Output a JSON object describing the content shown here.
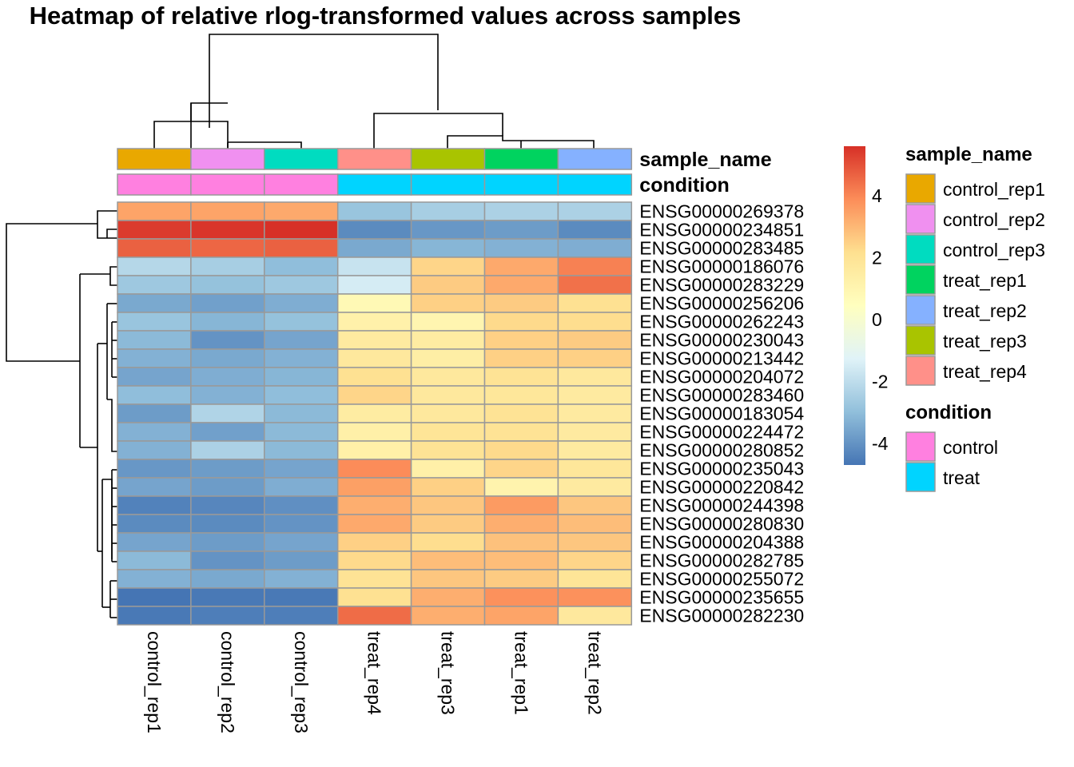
{
  "chart_data": {
    "type": "heatmap",
    "title": "Heatmap of relative rlog-transformed values across samples",
    "columns": [
      "control_rep1",
      "control_rep2",
      "control_rep3",
      "treat_rep4",
      "treat_rep3",
      "treat_rep1",
      "treat_rep2"
    ],
    "rows": [
      "ENSG00000269378",
      "ENSG00000234851",
      "ENSG00000283485",
      "ENSG00000186076",
      "ENSG00000283229",
      "ENSG00000256206",
      "ENSG00000262243",
      "ENSG00000230043",
      "ENSG00000213442",
      "ENSG00000204072",
      "ENSG00000283460",
      "ENSG00000183054",
      "ENSG00000224472",
      "ENSG00000280852",
      "ENSG00000235043",
      "ENSG00000220842",
      "ENSG00000244398",
      "ENSG00000280830",
      "ENSG00000204388",
      "ENSG00000282785",
      "ENSG00000255072",
      "ENSG00000235655",
      "ENSG00000282230"
    ],
    "values": [
      [
        3.4,
        3.4,
        3.3,
        -2.8,
        -2.5,
        -2.4,
        -2.4
      ],
      [
        5.4,
        5.5,
        5.6,
        -4.2,
        -3.9,
        -3.8,
        -4.2
      ],
      [
        4.7,
        4.6,
        4.7,
        -3.5,
        -3.2,
        -3.3,
        -3.4
      ],
      [
        -2.2,
        -2.5,
        -3.0,
        -1.8,
        2.4,
        3.3,
        4.1
      ],
      [
        -2.7,
        -2.9,
        -2.7,
        -1.5,
        2.6,
        3.3,
        4.4
      ],
      [
        -3.5,
        -3.7,
        -3.4,
        0.8,
        2.5,
        2.6,
        2.1
      ],
      [
        -2.8,
        -3.2,
        -2.9,
        1.2,
        1.0,
        2.3,
        2.2
      ],
      [
        -3.1,
        -4.0,
        -3.6,
        1.6,
        1.5,
        2.5,
        2.6
      ],
      [
        -3.3,
        -3.5,
        -3.3,
        1.7,
        1.4,
        2.5,
        2.5
      ],
      [
        -3.6,
        -3.4,
        -3.2,
        2.1,
        1.7,
        2.0,
        1.7
      ],
      [
        -3.0,
        -3.3,
        -3.0,
        2.4,
        1.7,
        1.8,
        1.6
      ],
      [
        -3.8,
        -2.3,
        -3.1,
        1.5,
        1.7,
        2.0,
        1.6
      ],
      [
        -3.3,
        -3.7,
        -3.1,
        1.3,
        1.9,
        2.0,
        1.6
      ],
      [
        -3.3,
        -2.4,
        -3.1,
        1.3,
        2.0,
        2.3,
        1.6
      ],
      [
        -3.9,
        -3.8,
        -3.6,
        3.9,
        1.3,
        2.4,
        1.8
      ],
      [
        -3.6,
        -3.8,
        -3.4,
        3.5,
        2.5,
        1.1,
        1.6
      ],
      [
        -4.4,
        -4.3,
        -4.1,
        3.2,
        2.7,
        3.6,
        2.7
      ],
      [
        -4.2,
        -4.2,
        -4.0,
        3.3,
        2.6,
        3.2,
        2.9
      ],
      [
        -3.6,
        -3.8,
        -3.6,
        2.5,
        2.2,
        2.8,
        2.7
      ],
      [
        -3.1,
        -4.0,
        -3.8,
        2.3,
        2.9,
        2.9,
        2.4
      ],
      [
        -3.3,
        -3.5,
        -3.3,
        2.0,
        2.7,
        2.6,
        1.9
      ],
      [
        -4.7,
        -4.6,
        -4.6,
        2.1,
        3.2,
        3.8,
        3.8
      ],
      [
        -4.6,
        -4.5,
        -4.5,
        4.5,
        3.2,
        3.4,
        1.7
      ]
    ],
    "color_scale": {
      "min": -4.7,
      "max": 5.6,
      "stops": [
        "#4575B4",
        "#91BFDB",
        "#E0F3F8",
        "#FFFFBF",
        "#FEE090",
        "#FC8D59",
        "#D73027"
      ],
      "ticks": [
        -4,
        -2,
        0,
        2,
        4
      ]
    },
    "annotations": {
      "sample_name": {
        "label": "sample_name",
        "values": [
          "control_rep1",
          "control_rep2",
          "control_rep3",
          "treat_rep4",
          "treat_rep3",
          "treat_rep1",
          "treat_rep2"
        ],
        "legend": [
          {
            "name": "control_rep1",
            "color": "#E9A800"
          },
          {
            "name": "control_rep2",
            "color": "#F090F0"
          },
          {
            "name": "control_rep3",
            "color": "#00DCC0"
          },
          {
            "name": "treat_rep1",
            "color": "#00D35F"
          },
          {
            "name": "treat_rep2",
            "color": "#85B1FF"
          },
          {
            "name": "treat_rep3",
            "color": "#A9C400"
          },
          {
            "name": "treat_rep4",
            "color": "#FF9089"
          }
        ]
      },
      "condition": {
        "label": "condition",
        "values": [
          "control",
          "control",
          "control",
          "treat",
          "treat",
          "treat",
          "treat"
        ],
        "legend": [
          {
            "name": "control",
            "color": "#FF80E0"
          },
          {
            "name": "treat",
            "color": "#00D4FF"
          }
        ]
      }
    }
  }
}
